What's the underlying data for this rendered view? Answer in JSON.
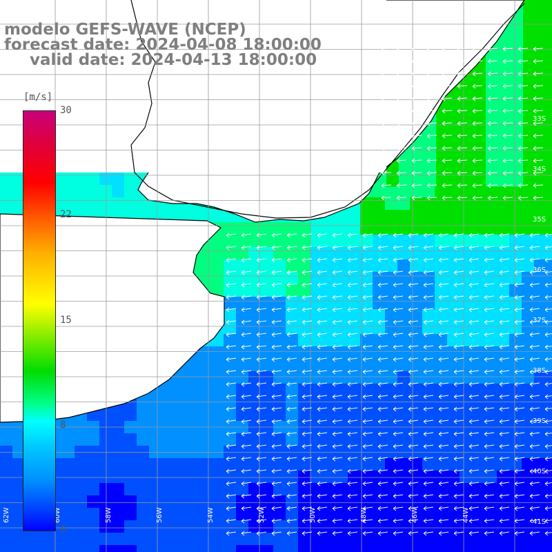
{
  "header": {
    "model": "modelo GEFS-WAVE (NCEP)",
    "forecast_date": "forecast date: 2024-04-08 18:00:00",
    "valid_date": "valid date: 2024-04-13 18:00:00"
  },
  "colorbar": {
    "unit": "[m/s]",
    "ticks": [
      "30",
      "22",
      "15",
      "8",
      "0"
    ],
    "colors": [
      "#c8007a",
      "#ff0000",
      "#ff6a00",
      "#ffff00",
      "#00dd00",
      "#00ffff",
      "#0090ff",
      "#0000ff"
    ]
  },
  "map": {
    "lat_labels": [
      "33S",
      "34S",
      "35S",
      "36S",
      "37S",
      "38S",
      "39S",
      "40S",
      "41S"
    ],
    "lon_labels": [
      "62W",
      "60W",
      "58W",
      "56W",
      "54W",
      "52W",
      "50W",
      "48W",
      "46W",
      "44W"
    ],
    "land_color": "#ffffff",
    "coast_color": "#000000",
    "grid_color": "#9a9a9a"
  }
}
